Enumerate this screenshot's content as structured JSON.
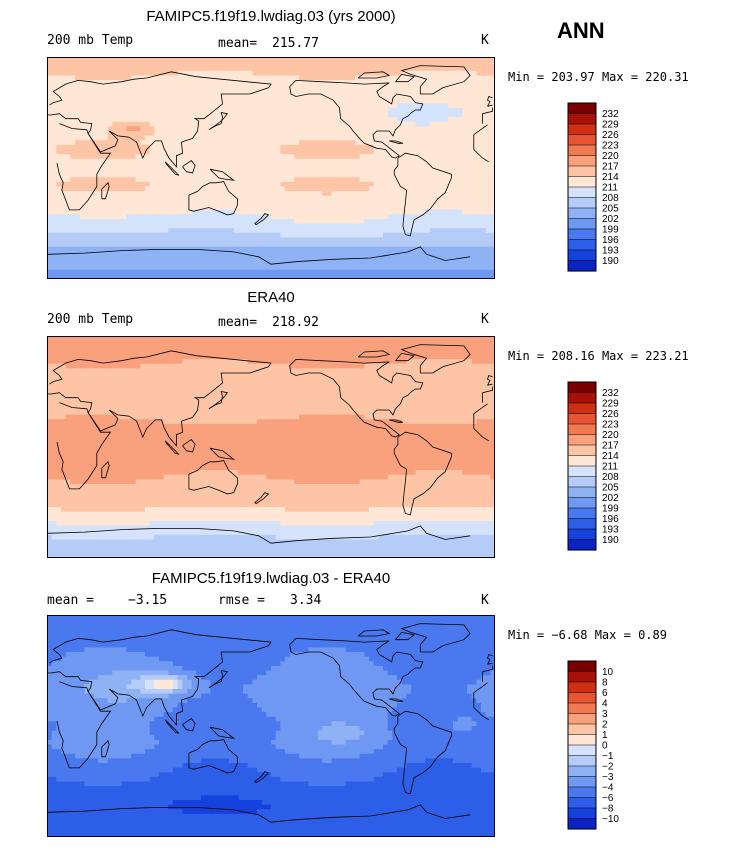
{
  "season": "ANN",
  "colors": {
    "cmap": [
      "#00008b",
      "#0b22c4",
      "#1541dd",
      "#2c5ee8",
      "#4a78ee",
      "#6f98f2",
      "#8fb2f5",
      "#b5cbf8",
      "#d4e2fb",
      "#ffe6d5",
      "#fdc4a6",
      "#f9a07c",
      "#f27a52",
      "#e65433",
      "#cf3014",
      "#a81008",
      "#7a0000"
    ],
    "coast": "#000000"
  },
  "panels": [
    {
      "id": "model",
      "title": "FAMIPC5.f19f19.lwdiag.03 (yrs 2000)",
      "left_label": "200 mb Temp",
      "stat1_label": "mean=",
      "stat1_value": "215.77",
      "stat2_label": "",
      "stat2_value": "",
      "units": "K",
      "min_label": "Min = ",
      "min_value": "203.97",
      "max_label": " Max = ",
      "max_value": "220.31",
      "levels": [
        "232",
        "229",
        "226",
        "223",
        "220",
        "217",
        "214",
        "211",
        "208",
        "205",
        "202",
        "199",
        "196",
        "193",
        "190"
      ],
      "colorbar_fill_count": 16,
      "field": {
        "type": "filled_contour",
        "levels": [
          190,
          193,
          196,
          199,
          202,
          205,
          208,
          211,
          214,
          217,
          220,
          223,
          226,
          229,
          232
        ],
        "lat_profile": [
          {
            "lat": -90,
            "value": 204.5
          },
          {
            "lat": -75,
            "value": 205.5
          },
          {
            "lat": -65,
            "value": 207.5
          },
          {
            "lat": -55,
            "value": 210.0
          },
          {
            "lat": -45,
            "value": 212.5
          },
          {
            "lat": -30,
            "value": 215.5
          },
          {
            "lat": -15,
            "value": 217.0
          },
          {
            "lat": 0,
            "value": 216.0
          },
          {
            "lat": 15,
            "value": 217.0
          },
          {
            "lat": 30,
            "value": 216.0
          },
          {
            "lat": 45,
            "value": 214.5
          },
          {
            "lat": 60,
            "value": 216.0
          },
          {
            "lat": 75,
            "value": 217.0
          },
          {
            "lat": 90,
            "value": 217.5
          }
        ],
        "anomalies": [
          {
            "lon": 70,
            "lat": 33,
            "rlon": 14,
            "rlat": 6,
            "amp": 5.0
          },
          {
            "lon": 230,
            "lat": -50,
            "rlon": 60,
            "rlat": 12,
            "amp": 1.5
          },
          {
            "lon": 300,
            "lat": 45,
            "rlon": 25,
            "rlat": 12,
            "amp": -2.0
          }
        ]
      }
    },
    {
      "id": "obs",
      "title": "ERA40",
      "left_label": "200 mb Temp",
      "stat1_label": "mean=",
      "stat1_value": "218.92",
      "stat2_label": "",
      "stat2_value": "",
      "units": "K",
      "min_label": "Min = ",
      "min_value": "208.16",
      "max_label": " Max = ",
      "max_value": "223.21",
      "levels": [
        "232",
        "229",
        "226",
        "223",
        "220",
        "217",
        "214",
        "211",
        "208",
        "205",
        "202",
        "199",
        "196",
        "193",
        "190"
      ],
      "colorbar_fill_count": 16,
      "field": {
        "type": "filled_contour",
        "levels": [
          190,
          193,
          196,
          199,
          202,
          205,
          208,
          211,
          214,
          217,
          220,
          223,
          226,
          229,
          232
        ],
        "lat_profile": [
          {
            "lat": -90,
            "value": 209.5
          },
          {
            "lat": -75,
            "value": 210.5
          },
          {
            "lat": -65,
            "value": 213.0
          },
          {
            "lat": -55,
            "value": 216.0
          },
          {
            "lat": -45,
            "value": 218.0
          },
          {
            "lat": -30,
            "value": 219.5
          },
          {
            "lat": -15,
            "value": 221.0
          },
          {
            "lat": 0,
            "value": 221.5
          },
          {
            "lat": 15,
            "value": 221.0
          },
          {
            "lat": 30,
            "value": 219.0
          },
          {
            "lat": 45,
            "value": 218.5
          },
          {
            "lat": 60,
            "value": 219.5
          },
          {
            "lat": 75,
            "value": 220.5
          },
          {
            "lat": 90,
            "value": 221.0
          }
        ],
        "anomalies": [
          {
            "lon": 80,
            "lat": 35,
            "rlon": 30,
            "rlat": 10,
            "amp": -1.5
          },
          {
            "lon": 200,
            "lat": 40,
            "rlon": 40,
            "rlat": 10,
            "amp": -1.5
          }
        ]
      }
    },
    {
      "id": "diff",
      "title": "FAMIPC5.f19f19.lwdiag.03 - ERA40",
      "left_label": "mean =",
      "stat1_label": "",
      "stat1_value": "−3.15",
      "stat2_label": "rmse =",
      "stat2_value": "3.34",
      "units": "K",
      "min_label": "Min = ",
      "min_value": "−6.68",
      "max_label": " Max = ",
      "max_value": "0.89",
      "levels": [
        "10",
        "8",
        "6",
        "4",
        "3",
        "2",
        "1",
        "0",
        "−1",
        "−2",
        "−3",
        "−4",
        "−6",
        "−8",
        "−10"
      ],
      "colorbar_fill_count": 16,
      "field": {
        "type": "filled_contour",
        "levels": [
          -10,
          -8,
          -6,
          -4,
          -3,
          -2,
          -1,
          0,
          1,
          2,
          3,
          4,
          6,
          8,
          10
        ],
        "lat_profile": [
          {
            "lat": -90,
            "value": -4.5
          },
          {
            "lat": -75,
            "value": -5.0
          },
          {
            "lat": -65,
            "value": -5.2
          },
          {
            "lat": -55,
            "value": -5.0
          },
          {
            "lat": -45,
            "value": -4.2
          },
          {
            "lat": -30,
            "value": -3.6
          },
          {
            "lat": -15,
            "value": -3.0
          },
          {
            "lat": 0,
            "value": -3.2
          },
          {
            "lat": 15,
            "value": -2.8
          },
          {
            "lat": 30,
            "value": -2.6
          },
          {
            "lat": 45,
            "value": -3.0
          },
          {
            "lat": 60,
            "value": -3.2
          },
          {
            "lat": 75,
            "value": -3.5
          },
          {
            "lat": 90,
            "value": -3.6
          }
        ],
        "anomalies": [
          {
            "lon": 95,
            "lat": 34,
            "rlon": 16,
            "rlat": 6,
            "amp": 3.6
          },
          {
            "lon": 80,
            "lat": 35,
            "rlon": 35,
            "rlat": 12,
            "amp": 1.5
          },
          {
            "lon": 240,
            "lat": -5,
            "rlon": 30,
            "rlat": 10,
            "amp": 1.0
          },
          {
            "lon": 330,
            "lat": 0,
            "rlon": 20,
            "rlat": 10,
            "amp": 0.8
          },
          {
            "lon": 140,
            "lat": -65,
            "rlon": 50,
            "rlat": 8,
            "amp": -1.5
          }
        ]
      }
    }
  ]
}
